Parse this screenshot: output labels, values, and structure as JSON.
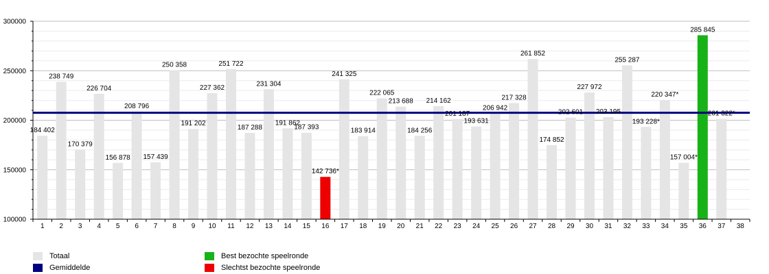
{
  "chart_data": {
    "type": "bar",
    "categories": [
      "1",
      "2",
      "3",
      "4",
      "5",
      "6",
      "7",
      "8",
      "9",
      "10",
      "11",
      "12",
      "13",
      "14",
      "15",
      "16",
      "17",
      "18",
      "19",
      "20",
      "21",
      "22",
      "23",
      "24",
      "25",
      "26",
      "27",
      "28",
      "29",
      "30",
      "31",
      "32",
      "33",
      "34",
      "35",
      "36",
      "37",
      "38"
    ],
    "series": [
      {
        "name": "Totaal",
        "values": [
          184402,
          238749,
          170379,
          226704,
          156878,
          208796,
          157439,
          250358,
          191202,
          227362,
          251722,
          187288,
          231304,
          191862,
          187393,
          142736,
          241325,
          183914,
          222065,
          213688,
          184256,
          214162,
          201187,
          193631,
          206942,
          217328,
          261852,
          174852,
          202601,
          227972,
          203195,
          255287,
          193228,
          220347,
          157004,
          285845,
          201322,
          null
        ],
        "labels": [
          "184 402",
          "238 749",
          "170 379",
          "226 704",
          "156 878",
          "208 796",
          "157 439",
          "250 358",
          "191 202",
          "227 362",
          "251 722",
          "187 288",
          "231 304",
          "191 862",
          "187 393",
          "142 736*",
          "241 325",
          "183 914",
          "222 065",
          "213 688",
          "184 256",
          "214 162",
          "201 187",
          "193 631",
          "206 942",
          "217 328",
          "261 852",
          "174 852",
          "202 601",
          "227 972",
          "203 195",
          "255 287",
          "193 228*",
          "220 347*",
          "157 004*",
          "285 845",
          "201 322*",
          ""
        ]
      }
    ],
    "average": {
      "name": "Gemiddelde",
      "value": 207500
    },
    "best_round": 36,
    "worst_round": 16,
    "ylim": [
      100000,
      300000
    ],
    "yticks": [
      100000,
      150000,
      200000,
      250000,
      300000
    ],
    "ytick_labels": [
      "100000",
      "150000",
      "200000",
      "250000",
      "300000"
    ],
    "xlabel": "",
    "ylabel": "",
    "title": "",
    "grid": true,
    "legend_position": "bottom",
    "colors": {
      "total": "#e5e5e5",
      "average": "#000080",
      "best": "#17b217",
      "worst": "#ee0000",
      "grid": "#bdbdbd",
      "minor_grid": "#ebebeb"
    }
  },
  "legend": {
    "items": [
      {
        "label": "Totaal",
        "color": "#e5e5e5"
      },
      {
        "label": "Gemiddelde",
        "color": "#000080"
      },
      {
        "label": "Best bezochte speelronde",
        "color": "#17b217"
      },
      {
        "label": "Slechtst bezochte speelronde",
        "color": "#ee0000"
      }
    ]
  }
}
